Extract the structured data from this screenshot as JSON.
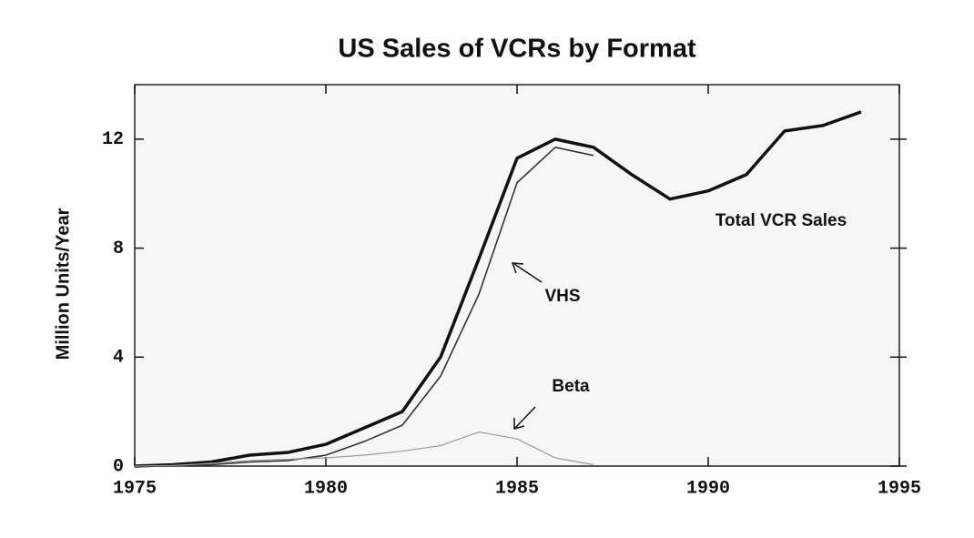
{
  "chart_data": {
    "type": "line",
    "title": "US Sales of VCRs by Format",
    "y_label": "Million Units/Year",
    "x": [
      1975,
      1976,
      1977,
      1978,
      1979,
      1980,
      1981,
      1982,
      1983,
      1984,
      1985,
      1986,
      1987,
      1988,
      1989,
      1990,
      1991,
      1992,
      1993,
      1994
    ],
    "series": [
      {
        "name": "Total VCR Sales",
        "color": "#111111",
        "width": 3.5,
        "values": [
          0,
          0.05,
          0.15,
          0.4,
          0.5,
          0.8,
          1.4,
          2.0,
          4.0,
          7.6,
          11.3,
          12.0,
          11.7,
          10.7,
          9.8,
          10.1,
          10.7,
          12.3,
          12.5,
          13.0
        ]
      },
      {
        "name": "VHS",
        "color": "#333333",
        "width": 1.6,
        "values": [
          0,
          0,
          0.05,
          0.15,
          0.2,
          0.4,
          0.9,
          1.5,
          3.3,
          6.3,
          10.4,
          11.7,
          11.4,
          null,
          null,
          null,
          null,
          null,
          null,
          null
        ]
      },
      {
        "name": "Beta",
        "color": "#999999",
        "width": 1.2,
        "values": [
          0,
          0.02,
          0.1,
          0.2,
          0.25,
          0.3,
          0.4,
          0.55,
          0.75,
          1.25,
          1.0,
          0.3,
          0.05,
          null,
          null,
          null,
          null,
          null,
          null,
          null
        ]
      }
    ],
    "xlim": [
      1975,
      1995
    ],
    "xticks": [
      1975,
      1980,
      1985,
      1990,
      1995
    ],
    "ylim": [
      0,
      14
    ],
    "yticks": [
      0,
      4,
      8,
      12
    ],
    "grid": false
  }
}
